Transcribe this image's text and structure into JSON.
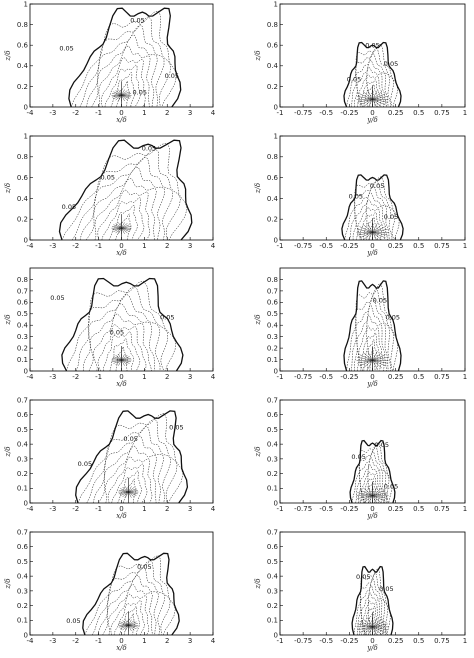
{
  "chart_data": [
    {
      "type": "contour",
      "panel": "left",
      "row": 1,
      "xlabel": "x/δ",
      "ylabel": "z/δ",
      "xlim": [
        -4,
        4
      ],
      "ylim": [
        0,
        1
      ],
      "xticks": [
        "-4",
        "-3",
        "-2",
        "-1",
        "0",
        "1",
        "2",
        "3",
        "4"
      ],
      "yticks": [
        "0",
        "0.2",
        "0.4",
        "0.6",
        "0.8",
        "1"
      ],
      "contour_labels": [
        "0.05",
        "0.05",
        "0.05",
        "0.05"
      ]
    },
    {
      "type": "contour",
      "panel": "right",
      "row": 1,
      "xlabel": "y/δ",
      "ylabel": "z/δ",
      "xlim": [
        -1,
        1
      ],
      "ylim": [
        0,
        1
      ],
      "xticks": [
        "-1",
        "-0.75",
        "-0.5",
        "-0.25",
        "0",
        "0.25",
        "0.5",
        "0.75",
        "1"
      ],
      "yticks": [
        "0",
        "0.2",
        "0.4",
        "0.6",
        "0.8",
        "1"
      ],
      "contour_labels": [
        "0.05",
        "0.05",
        "0.05"
      ]
    },
    {
      "type": "contour",
      "panel": "left",
      "row": 2,
      "xlabel": "x/δ",
      "ylabel": "z/δ",
      "xlim": [
        -4,
        4
      ],
      "ylim": [
        0,
        1
      ],
      "xticks": [
        "-4",
        "-3",
        "-2",
        "-1",
        "0",
        "1",
        "2",
        "3",
        "4"
      ],
      "yticks": [
        "0",
        "0.2",
        "0.4",
        "0.6",
        "0.8",
        "1"
      ],
      "contour_labels": [
        "0.05",
        "0.05",
        "0.05"
      ]
    },
    {
      "type": "contour",
      "panel": "right",
      "row": 2,
      "xlabel": "y/δ",
      "ylabel": "z/δ",
      "xlim": [
        -1,
        1
      ],
      "ylim": [
        0,
        1
      ],
      "xticks": [
        "-1",
        "-0.75",
        "-0.5",
        "-0.25",
        "0",
        "0.25",
        "0.5",
        "0.75",
        "1"
      ],
      "yticks": [
        "0",
        "0.2",
        "0.4",
        "0.6",
        "0.8",
        "1"
      ],
      "contour_labels": [
        "0.05",
        "0.05",
        "0.05"
      ]
    },
    {
      "type": "contour",
      "panel": "left",
      "row": 3,
      "xlabel": "x/δ",
      "ylabel": "z/δ",
      "xlim": [
        -4,
        4
      ],
      "ylim": [
        0,
        0.9
      ],
      "xticks": [
        "-4",
        "-3",
        "-2",
        "-1",
        "0",
        "1",
        "2",
        "3",
        "4"
      ],
      "yticks": [
        "0",
        "0.1",
        "0.2",
        "0.3",
        "0.4",
        "0.5",
        "0.6",
        "0.7",
        "0.8"
      ],
      "contour_labels": [
        "0.05",
        "0.05",
        "0.05"
      ]
    },
    {
      "type": "contour",
      "panel": "right",
      "row": 3,
      "xlabel": "y/δ",
      "ylabel": "z/δ",
      "xlim": [
        -1,
        1
      ],
      "ylim": [
        0,
        0.9
      ],
      "xticks": [
        "-1",
        "-0.75",
        "-0.5",
        "-0.25",
        "0",
        "0.25",
        "0.5",
        "0.75",
        "1"
      ],
      "yticks": [
        "0",
        "0.1",
        "0.2",
        "0.3",
        "0.4",
        "0.5",
        "0.6",
        "0.7",
        "0.8"
      ],
      "contour_labels": [
        "0.05",
        "0.05"
      ]
    },
    {
      "type": "contour",
      "panel": "left",
      "row": 4,
      "xlabel": "x/δ",
      "ylabel": "z/δ",
      "xlim": [
        -4,
        4
      ],
      "ylim": [
        0,
        0.7
      ],
      "xticks": [
        "-4",
        "-3",
        "-2",
        "-1",
        "0",
        "1",
        "2",
        "3",
        "4"
      ],
      "yticks": [
        "0",
        "0.1",
        "0.2",
        "0.3",
        "0.4",
        "0.5",
        "0.6",
        "0.7"
      ],
      "contour_labels": [
        "0.05",
        "0.05",
        "0.05"
      ]
    },
    {
      "type": "contour",
      "panel": "right",
      "row": 4,
      "xlabel": "y/δ",
      "ylabel": "z/δ",
      "xlim": [
        -1,
        1
      ],
      "ylim": [
        0,
        0.7
      ],
      "xticks": [
        "-1",
        "-0.75",
        "-0.5",
        "-0.25",
        "0",
        "0.25",
        "0.5",
        "0.75",
        "1"
      ],
      "yticks": [
        "0",
        "0.1",
        "0.2",
        "0.3",
        "0.4",
        "0.5",
        "0.6",
        "0.7"
      ],
      "contour_labels": [
        "0.05",
        "0.05",
        "0.05"
      ]
    },
    {
      "type": "contour",
      "panel": "left",
      "row": 5,
      "xlabel": "x/δ",
      "ylabel": "z/δ",
      "xlim": [
        -4,
        4
      ],
      "ylim": [
        0,
        0.7
      ],
      "xticks": [
        "-4",
        "-3",
        "-2",
        "-1",
        "0",
        "1",
        "2",
        "3",
        "4"
      ],
      "yticks": [
        "0",
        "0.1",
        "0.2",
        "0.3",
        "0.4",
        "0.5",
        "0.6",
        "0.7"
      ],
      "contour_labels": [
        "0.05",
        "0.05"
      ]
    },
    {
      "type": "contour",
      "panel": "right",
      "row": 5,
      "xlabel": "y/δ",
      "ylabel": "z/δ",
      "xlim": [
        -1,
        1
      ],
      "ylim": [
        0,
        0.7
      ],
      "xticks": [
        "-1",
        "-0.75",
        "-0.5",
        "-0.25",
        "0",
        "0.25",
        "0.5",
        "0.75",
        "1"
      ],
      "yticks": [
        "0",
        "0.1",
        "0.2",
        "0.3",
        "0.4",
        "0.5",
        "0.6",
        "0.7"
      ],
      "contour_labels": [
        "0.05",
        "0.05"
      ]
    }
  ]
}
